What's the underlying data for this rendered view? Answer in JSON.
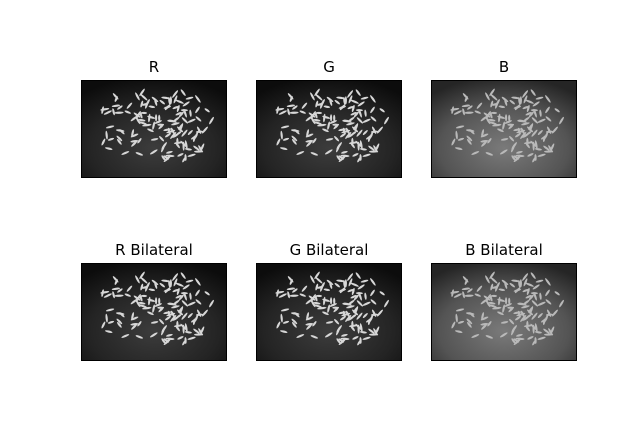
{
  "figure": {
    "panels": [
      {
        "title": "R",
        "tone": "dark"
      },
      {
        "title": "G",
        "tone": "dark"
      },
      {
        "title": "B",
        "tone": "light"
      },
      {
        "title": "R Bilateral",
        "tone": "dark"
      },
      {
        "title": "G Bilateral",
        "tone": "dark"
      },
      {
        "title": "B Bilateral",
        "tone": "light"
      }
    ]
  }
}
